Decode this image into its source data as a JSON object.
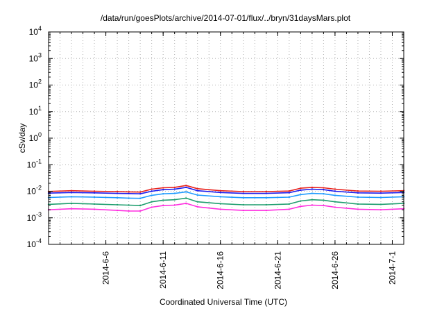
{
  "chart_data": {
    "type": "line",
    "title": "/data/run/goesPlots/archive/2014-07-01/flux/../bryn/31daysMars.plot",
    "xlabel": "Coordinated Universal Time (UTC)",
    "ylabel": "cSv/day",
    "yscale": "log",
    "ylim": [
      "1e-4",
      "1e4"
    ],
    "xlim": [
      "2014-06-01",
      "2014-07-02"
    ],
    "grid": true,
    "y_ticks": [
      {
        "value": "1e-4",
        "base": "10",
        "exp": "-4"
      },
      {
        "value": "1e-3",
        "base": "10",
        "exp": "-3"
      },
      {
        "value": "1e-2",
        "base": "10",
        "exp": "-2"
      },
      {
        "value": "1e-1",
        "base": "10",
        "exp": "-1"
      },
      {
        "value": "1e0",
        "base": "10",
        "exp": "0"
      },
      {
        "value": "1e1",
        "base": "10",
        "exp": "1"
      },
      {
        "value": "1e2",
        "base": "10",
        "exp": "2"
      },
      {
        "value": "1e3",
        "base": "10",
        "exp": "3"
      },
      {
        "value": "1e4",
        "base": "10",
        "exp": "4"
      }
    ],
    "x_ticks": [
      "2014-6-6",
      "2014-6-11",
      "2014-6-16",
      "2014-6-21",
      "2014-6-26",
      "2014-7-1"
    ],
    "x_tick_dates": [
      "2014-06-06",
      "2014-06-11",
      "2014-06-16",
      "2014-06-21",
      "2014-06-26",
      "2014-07-01"
    ],
    "series": [
      {
        "color": "#e8211b",
        "x": [
          "2014-06-01",
          "2014-06-03",
          "2014-06-05",
          "2014-06-07",
          "2014-06-08",
          "2014-06-09",
          "2014-06-10",
          "2014-06-11",
          "2014-06-12",
          "2014-06-13",
          "2014-06-14",
          "2014-06-16",
          "2014-06-18",
          "2014-06-20",
          "2014-06-22",
          "2014-06-23",
          "2014-06-24",
          "2014-06-25",
          "2014-06-26",
          "2014-06-28",
          "2014-06-30",
          "2014-07-02"
        ],
        "values": [
          0.0098,
          0.0105,
          0.01,
          0.0097,
          0.0095,
          0.0093,
          0.012,
          0.0135,
          0.014,
          0.0165,
          0.0125,
          0.0105,
          0.0097,
          0.0097,
          0.0102,
          0.013,
          0.014,
          0.0135,
          0.012,
          0.0102,
          0.01,
          0.0105
        ]
      },
      {
        "color": "#1a1aee",
        "x": [
          "2014-06-01",
          "2014-06-03",
          "2014-06-05",
          "2014-06-07",
          "2014-06-08",
          "2014-06-09",
          "2014-06-10",
          "2014-06-11",
          "2014-06-12",
          "2014-06-13",
          "2014-06-14",
          "2014-06-16",
          "2014-06-18",
          "2014-06-20",
          "2014-06-22",
          "2014-06-23",
          "2014-06-24",
          "2014-06-25",
          "2014-06-26",
          "2014-06-28",
          "2014-06-30",
          "2014-07-02"
        ],
        "values": [
          0.0085,
          0.009,
          0.0087,
          0.0083,
          0.0082,
          0.008,
          0.01,
          0.0115,
          0.012,
          0.014,
          0.0105,
          0.009,
          0.0083,
          0.0083,
          0.0088,
          0.011,
          0.012,
          0.0115,
          0.01,
          0.0087,
          0.0085,
          0.009
        ]
      },
      {
        "color": "#1f9bff",
        "x": [
          "2014-06-01",
          "2014-06-03",
          "2014-06-05",
          "2014-06-07",
          "2014-06-08",
          "2014-06-09",
          "2014-06-10",
          "2014-06-11",
          "2014-06-12",
          "2014-06-13",
          "2014-06-14",
          "2014-06-16",
          "2014-06-18",
          "2014-06-20",
          "2014-06-22",
          "2014-06-23",
          "2014-06-24",
          "2014-06-25",
          "2014-06-26",
          "2014-06-28",
          "2014-06-30",
          "2014-07-02"
        ],
        "values": [
          0.0058,
          0.0062,
          0.006,
          0.0057,
          0.0055,
          0.0054,
          0.007,
          0.008,
          0.0083,
          0.0095,
          0.0072,
          0.0062,
          0.0057,
          0.0057,
          0.006,
          0.0075,
          0.0083,
          0.008,
          0.007,
          0.006,
          0.0058,
          0.0062
        ]
      },
      {
        "color": "#1e9e6e",
        "x": [
          "2014-06-01",
          "2014-06-03",
          "2014-06-05",
          "2014-06-07",
          "2014-06-08",
          "2014-06-09",
          "2014-06-10",
          "2014-06-11",
          "2014-06-12",
          "2014-06-13",
          "2014-06-14",
          "2014-06-16",
          "2014-06-18",
          "2014-06-20",
          "2014-06-22",
          "2014-06-23",
          "2014-06-24",
          "2014-06-25",
          "2014-06-26",
          "2014-06-28",
          "2014-06-30",
          "2014-07-02"
        ],
        "values": [
          0.0032,
          0.0035,
          0.0033,
          0.0031,
          0.003,
          0.0029,
          0.004,
          0.0046,
          0.0048,
          0.0055,
          0.004,
          0.0034,
          0.0031,
          0.0031,
          0.0033,
          0.0043,
          0.0048,
          0.0046,
          0.004,
          0.0033,
          0.0032,
          0.0035
        ]
      },
      {
        "color": "#ff2fe0",
        "x": [
          "2014-06-01",
          "2014-06-03",
          "2014-06-05",
          "2014-06-07",
          "2014-06-08",
          "2014-06-09",
          "2014-06-10",
          "2014-06-11",
          "2014-06-12",
          "2014-06-13",
          "2014-06-14",
          "2014-06-16",
          "2014-06-18",
          "2014-06-20",
          "2014-06-22",
          "2014-06-23",
          "2014-06-24",
          "2014-06-25",
          "2014-06-26",
          "2014-06-28",
          "2014-06-30",
          "2014-07-02"
        ],
        "values": [
          0.002,
          0.0022,
          0.0021,
          0.0019,
          0.0018,
          0.0018,
          0.0025,
          0.0029,
          0.003,
          0.0035,
          0.0026,
          0.0021,
          0.0019,
          0.0019,
          0.0021,
          0.0027,
          0.003,
          0.0029,
          0.0025,
          0.0021,
          0.002,
          0.0022
        ]
      }
    ]
  }
}
